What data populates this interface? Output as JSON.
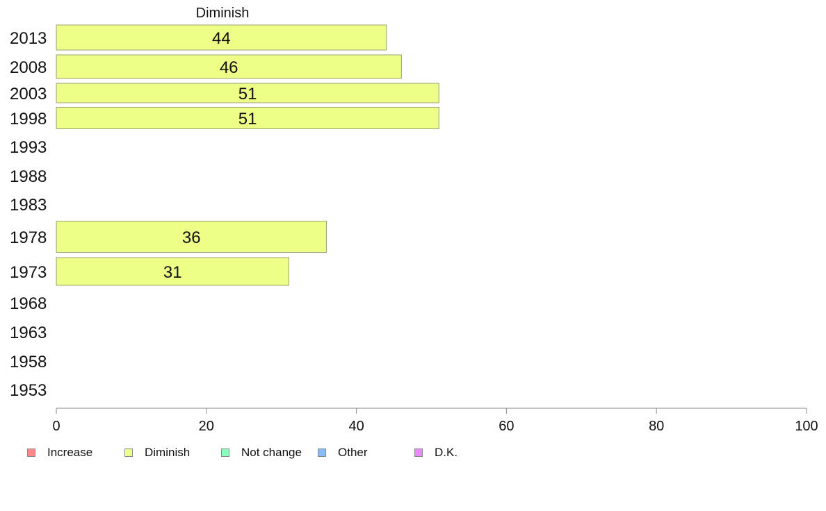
{
  "chart_data": {
    "type": "bar",
    "orientation": "horizontal",
    "title": "Diminish",
    "categories": [
      "2013",
      "2008",
      "2003",
      "1998",
      "1993",
      "1988",
      "1983",
      "1978",
      "1973",
      "1968",
      "1963",
      "1958",
      "1953"
    ],
    "series": [
      {
        "name": "Diminish",
        "color": "#eeff88",
        "values": [
          44,
          46,
          51,
          51,
          null,
          null,
          null,
          36,
          31,
          null,
          null,
          null,
          null
        ]
      }
    ],
    "data_labels": [
      "44",
      "46",
      "51",
      "51",
      "",
      "",
      "",
      "36",
      "31",
      "",
      "",
      "",
      ""
    ],
    "xlim": [
      0,
      100
    ],
    "xticks": [
      0,
      20,
      40,
      60,
      80,
      100
    ],
    "grid": false,
    "legend_position": "bottom-left",
    "legend": [
      {
        "label": "Increase",
        "color": "#ff8888"
      },
      {
        "label": "Diminish",
        "color": "#eeff88"
      },
      {
        "label": "Not change",
        "color": "#88ffbb"
      },
      {
        "label": "Other",
        "color": "#88bbff"
      },
      {
        "label": "D.K.",
        "color": "#ee88ff"
      }
    ]
  }
}
